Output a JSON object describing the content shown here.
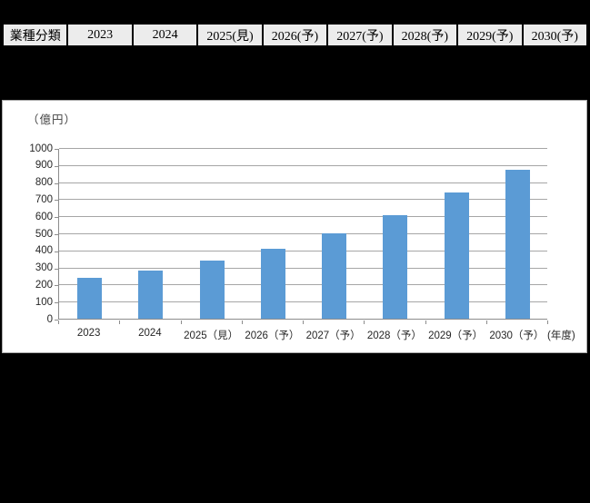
{
  "table": {
    "columns": [
      "業種分類",
      "2023",
      "2024",
      "2025(見)",
      "2026(予)",
      "2027(予)",
      "2028(予)",
      "2029(予)",
      "2030(予)"
    ]
  },
  "chart_data": {
    "type": "bar",
    "title": "",
    "unit_label": "（億円）",
    "axis_unit_label": "(年度)",
    "categories": [
      "2023",
      "2024",
      "2025（見）",
      "2026（予）",
      "2027（予）",
      "2028（予）",
      "2029（予）",
      "2030（予）"
    ],
    "values": [
      240,
      280,
      340,
      410,
      500,
      605,
      740,
      875
    ],
    "ylim": [
      0,
      1000
    ],
    "ytick_step": 100,
    "yticks": [
      0,
      100,
      200,
      300,
      400,
      500,
      600,
      700,
      800,
      900,
      1000
    ],
    "xlabel": "",
    "ylabel": "",
    "grid": true,
    "legend_position": "none",
    "bar_color": "#5B9BD5",
    "gridline_color": "#a6a6a6",
    "axis_color": "#8c8c8c",
    "panel_background": "#ffffff",
    "page_background": "#000000"
  }
}
